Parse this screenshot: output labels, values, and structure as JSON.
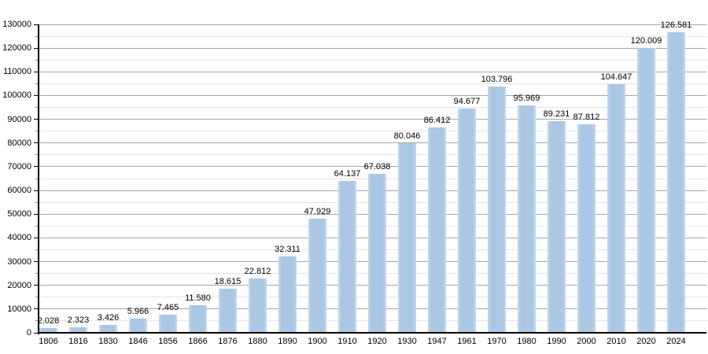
{
  "chart_data": {
    "type": "bar",
    "title": "",
    "xlabel": "",
    "ylabel": "",
    "categories": [
      "1806",
      "1816",
      "1830",
      "1846",
      "1856",
      "1866",
      "1876",
      "1880",
      "1890",
      "1900",
      "1910",
      "1920",
      "1930",
      "1947",
      "1961",
      "1970",
      "1980",
      "1990",
      "2000",
      "2010",
      "2020",
      "2024"
    ],
    "values": [
      2028,
      2323,
      3426,
      5966,
      7465,
      11580,
      18615,
      22812,
      32311,
      47929,
      64137,
      67038,
      80046,
      86412,
      94677,
      103796,
      95969,
      89231,
      87812,
      104647,
      120009,
      126581
    ],
    "value_labels": [
      "2.028",
      "2.323",
      "3.426",
      "5.966",
      "7.465",
      "11.580",
      "18.615",
      "22.812",
      "32.311",
      "47.929",
      "64.137",
      "67.038",
      "80.046",
      "86.412",
      "94.677",
      "103.796",
      "95.969",
      "89.231",
      "87.812",
      "104.647",
      "120.009",
      "126.581"
    ],
    "ylim": [
      0,
      130000
    ],
    "y_major_step": 10000,
    "y_minor_step": 5000,
    "y_tick_labels": [
      "0",
      "10000",
      "20000",
      "30000",
      "40000",
      "50000",
      "60000",
      "70000",
      "80000",
      "90000",
      "100000",
      "110000",
      "120000",
      "130000"
    ],
    "grid": "on",
    "legend": "none",
    "colors": {
      "bar_fill": "#aac7e3",
      "bar_edge_highlight": "#c6d9ed",
      "grid_major": "#a6a6a6",
      "grid_minor": "#e4e4e4",
      "axis": "#000000",
      "text": "#000000",
      "background": "#ffffff"
    }
  }
}
